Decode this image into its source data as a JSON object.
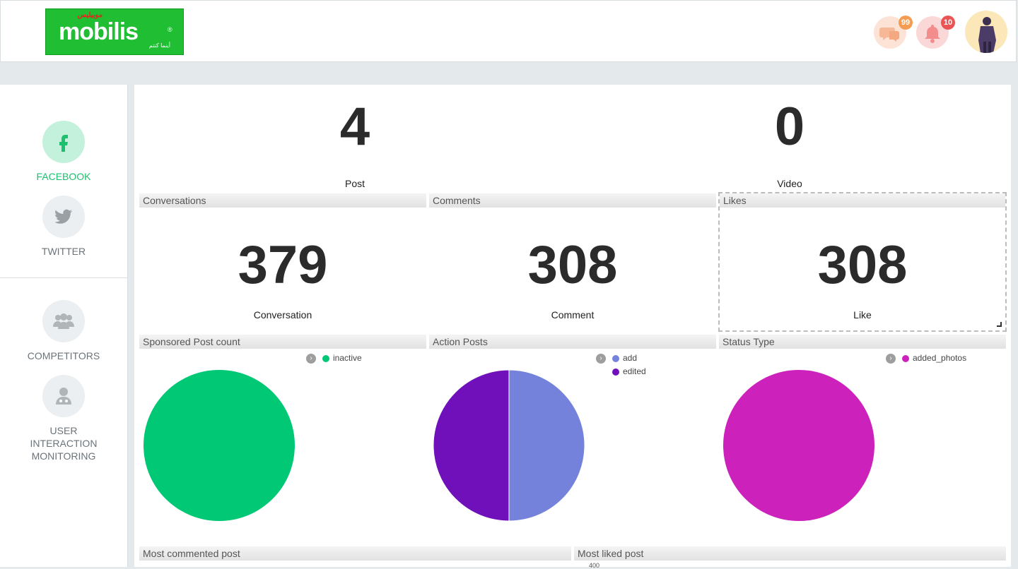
{
  "header": {
    "logo": {
      "wordmark": "mobilis",
      "arabic_top": "موبيليس",
      "arabic_bottom": "أينما كنتم",
      "registered": "®"
    },
    "messages_badge": "99",
    "notifications_badge": "10",
    "icons": {
      "messages": "chat-bubbles-icon",
      "notifications": "bell-icon",
      "avatar": "user-avatar"
    }
  },
  "sidebar": {
    "items": [
      {
        "label": "FACEBOOK",
        "icon": "facebook-icon",
        "active": true
      },
      {
        "label": "TWITTER",
        "icon": "twitter-icon",
        "active": false
      },
      {
        "label": "COMPETITORS",
        "icon": "users-group-icon",
        "active": false
      },
      {
        "label": "USER INTERACTION MONITORING",
        "icon": "user-doctor-icon",
        "active": false
      }
    ]
  },
  "stats": {
    "post": {
      "value": "4",
      "label": "Post"
    },
    "video": {
      "value": "0",
      "label": "Video"
    }
  },
  "panels": {
    "conversations": {
      "title": "Conversations",
      "value": "379",
      "label": "Conversation"
    },
    "comments": {
      "title": "Comments",
      "value": "308",
      "label": "Comment"
    },
    "likes": {
      "title": "Likes",
      "value": "308",
      "label": "Like"
    },
    "sponsored": {
      "title": "Sponsored Post count"
    },
    "action_posts": {
      "title": "Action Posts"
    },
    "status_type": {
      "title": "Status Type"
    },
    "most_commented": {
      "title": "Most commented post"
    },
    "most_liked": {
      "title": "Most liked post",
      "tick": "400"
    }
  },
  "chart_data": [
    {
      "type": "pie",
      "title": "Sponsored Post count",
      "categories": [
        "inactive"
      ],
      "values": [
        1
      ],
      "colors": [
        "#00c875"
      ]
    },
    {
      "type": "pie",
      "title": "Action Posts",
      "categories": [
        "add",
        "edited"
      ],
      "values": [
        1,
        1
      ],
      "colors": [
        "#7482dc",
        "#7010bb"
      ]
    },
    {
      "type": "pie",
      "title": "Status Type",
      "categories": [
        "added_photos"
      ],
      "values": [
        1
      ],
      "colors": [
        "#cc22bb"
      ]
    }
  ],
  "colors": {
    "accent": "#1cc16f",
    "logo_green": "#1fbe33"
  }
}
